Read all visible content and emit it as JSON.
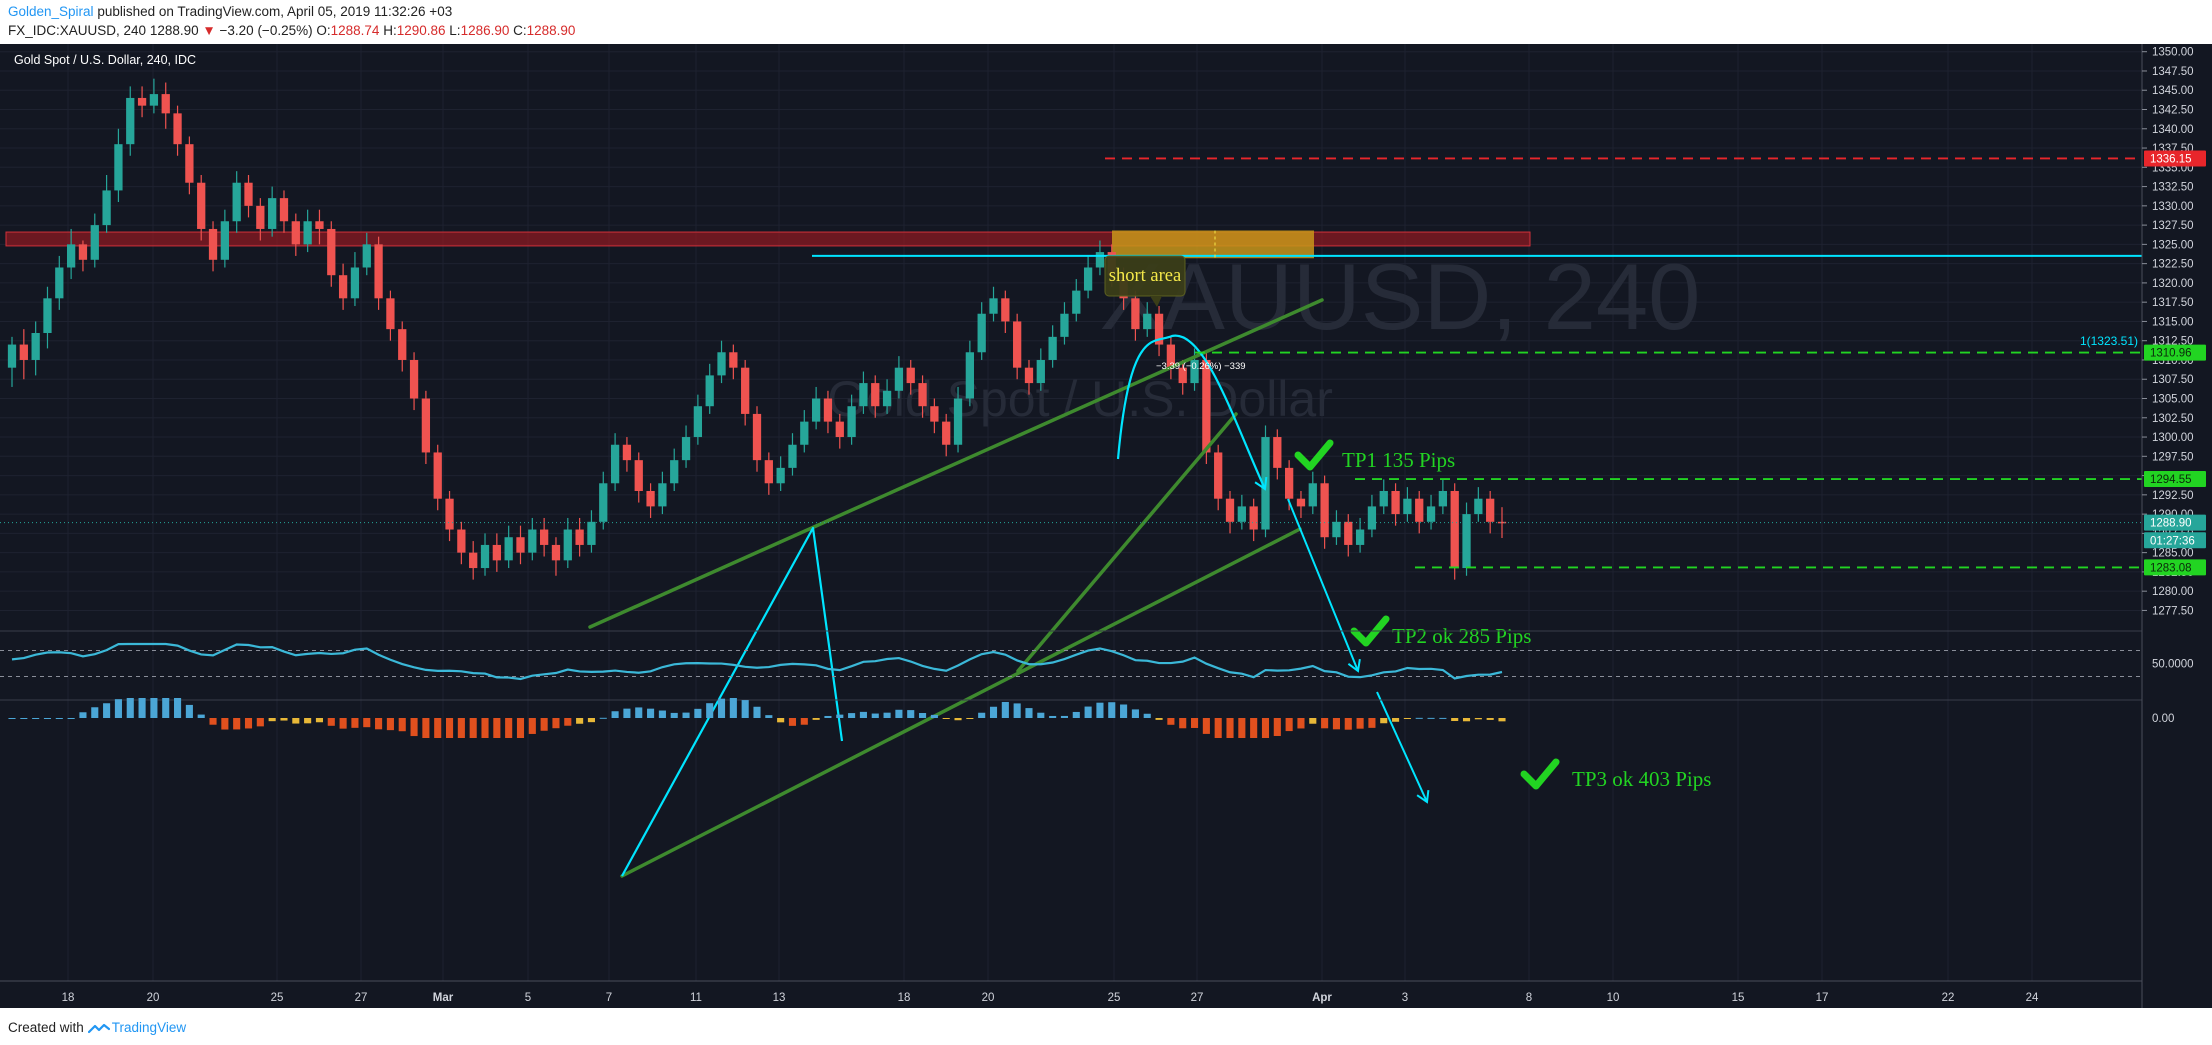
{
  "header": {
    "author": "Golden_Spiral",
    "published": "published on TradingView.com, April 05, 2019 11:32:26 +03",
    "symbol_info": "FX_IDC:XAUUSD, 240",
    "last": "1288.90",
    "change_arrow": "▼",
    "change": "−3.20 (−0.25%)",
    "o_label": "O:",
    "o": "1288.74",
    "h_label": "H:",
    "h": "1290.86",
    "l_label": "L:",
    "l": "1286.90",
    "c_label": "C:",
    "c": "1288.90"
  },
  "footer": {
    "prefix": "Created with",
    "brand": "TradingView"
  },
  "colors": {
    "background": "#131722",
    "up": "#26a69a",
    "down": "#ef5350",
    "cyan": "#00e5ff",
    "green_line": "#3e8a2e",
    "tp_green": "#22d422",
    "stop_red": "#e8262b"
  },
  "chart_data": {
    "type": "candlestick",
    "title": "Gold Spot / U.S. Dollar, 240, IDC",
    "watermark_symbol": "XAUUSD, 240",
    "watermark_name": "Gold Spot / U.S. Dollar",
    "ylim": [
      1276.0,
      1351.0
    ],
    "y_ticks": [
      "1277.50",
      "1280.00",
      "1282.50",
      "1285.00",
      "1287.50",
      "1290.00",
      "1292.50",
      "1295.00",
      "1297.50",
      "1300.00",
      "1302.50",
      "1305.00",
      "1307.50",
      "1310.00",
      "1312.50",
      "1315.00",
      "1317.50",
      "1320.00",
      "1322.50",
      "1325.00",
      "1327.50",
      "1330.00",
      "1332.50",
      "1335.00",
      "1337.50",
      "1340.00",
      "1342.50",
      "1345.00",
      "1347.50",
      "1350.00"
    ],
    "x_ticks": [
      "18",
      "20",
      "25",
      "27",
      "Mar",
      "5",
      "7",
      "11",
      "13",
      "18",
      "20",
      "25",
      "27",
      "Apr",
      "3",
      "8",
      "10",
      "15",
      "17",
      "22",
      "24"
    ],
    "price_labels": [
      {
        "text": "1336.15",
        "value": 1336.15,
        "color": "#e8262b"
      },
      {
        "text": "1310.96",
        "value": 1310.96,
        "color": "#22d422"
      },
      {
        "text": "1294.55",
        "value": 1294.55,
        "color": "#22d422"
      },
      {
        "text": "1288.90",
        "value": 1288.9,
        "color": "#26a69a"
      },
      {
        "text": "01:27:36",
        "value": 1286.6,
        "color": "#26a69a"
      },
      {
        "text": "1283.08",
        "value": 1283.08,
        "color": "#22d422"
      }
    ],
    "levels": [
      {
        "value": 1336.15,
        "color": "#e8262b"
      },
      {
        "value": 1310.96,
        "color": "#22d422",
        "label": "TP1 135 Pips"
      },
      {
        "value": 1294.55,
        "color": "#22d422",
        "label": "TP2 ok 285 Pips"
      },
      {
        "value": 1283.08,
        "color": "#22d422",
        "label": "TP3 ok 403  Pips"
      },
      {
        "value": 1323.51,
        "color": "#00e5ff",
        "label": "1(1323.51)"
      }
    ],
    "annotations": {
      "short_area": "short area",
      "measure": "−3.39 (−0.26%) −339",
      "fib_label": "1(1323.51)",
      "tp1": "TP1 135 Pips",
      "tp2": "TP2 ok 285 Pips",
      "tp3": "TP3 ok 403  Pips"
    },
    "rsi": {
      "level_label": "50.0000",
      "upper": 70,
      "lower": 30
    },
    "macd": {
      "zero_label": "0.00"
    },
    "candles": [
      [
        1309.0,
        1312.0,
        1306.5,
        1313.0
      ],
      [
        1312.0,
        1310.0,
        1307.5,
        1314.0
      ],
      [
        1310.0,
        1313.5,
        1308.0,
        1315.0
      ],
      [
        1313.5,
        1318.0,
        1311.5,
        1319.5
      ],
      [
        1318.0,
        1322.0,
        1316.5,
        1323.5
      ],
      [
        1322.0,
        1325.0,
        1320.5,
        1327.0
      ],
      [
        1325.0,
        1323.0,
        1321.5,
        1325.5
      ],
      [
        1323.0,
        1327.5,
        1322.0,
        1329.0
      ],
      [
        1327.5,
        1332.0,
        1326.5,
        1334.0
      ],
      [
        1332.0,
        1338.0,
        1330.5,
        1340.0
      ],
      [
        1338.0,
        1344.0,
        1336.5,
        1345.5
      ],
      [
        1344.0,
        1343.0,
        1341.5,
        1345.5
      ],
      [
        1343.0,
        1344.5,
        1342.0,
        1346.5
      ],
      [
        1344.5,
        1342.0,
        1340.0,
        1346.0
      ],
      [
        1342.0,
        1338.0,
        1336.5,
        1343.0
      ],
      [
        1338.0,
        1333.0,
        1331.5,
        1339.0
      ],
      [
        1333.0,
        1327.0,
        1325.5,
        1334.0
      ],
      [
        1327.0,
        1323.0,
        1321.5,
        1328.0
      ],
      [
        1323.0,
        1328.0,
        1322.0,
        1329.5
      ],
      [
        1328.0,
        1333.0,
        1326.5,
        1334.5
      ],
      [
        1333.0,
        1330.0,
        1328.5,
        1334.0
      ],
      [
        1330.0,
        1327.0,
        1325.5,
        1331.0
      ],
      [
        1327.0,
        1331.0,
        1326.0,
        1332.5
      ],
      [
        1331.0,
        1328.0,
        1326.5,
        1332.0
      ],
      [
        1328.0,
        1325.0,
        1323.5,
        1329.0
      ],
      [
        1325.0,
        1328.0,
        1324.0,
        1329.5
      ],
      [
        1328.0,
        1327.0,
        1325.0,
        1329.5
      ],
      [
        1327.0,
        1321.0,
        1319.5,
        1328.0
      ],
      [
        1321.0,
        1318.0,
        1316.5,
        1322.5
      ],
      [
        1318.0,
        1322.0,
        1317.0,
        1324.0
      ],
      [
        1322.0,
        1325.0,
        1321.0,
        1326.5
      ],
      [
        1325.0,
        1318.0,
        1316.5,
        1326.0
      ],
      [
        1318.0,
        1314.0,
        1312.5,
        1319.0
      ],
      [
        1314.0,
        1310.0,
        1308.5,
        1315.0
      ],
      [
        1310.0,
        1305.0,
        1303.5,
        1311.0
      ],
      [
        1305.0,
        1298.0,
        1296.5,
        1306.0
      ],
      [
        1298.0,
        1292.0,
        1290.5,
        1299.0
      ],
      [
        1292.0,
        1288.0,
        1286.5,
        1293.0
      ],
      [
        1288.0,
        1285.0,
        1283.5,
        1289.0
      ],
      [
        1285.0,
        1283.0,
        1281.5,
        1286.5
      ],
      [
        1283.0,
        1286.0,
        1282.0,
        1287.5
      ],
      [
        1286.0,
        1284.0,
        1282.5,
        1287.5
      ],
      [
        1284.0,
        1287.0,
        1283.0,
        1288.5
      ],
      [
        1287.0,
        1285.0,
        1283.5,
        1288.5
      ],
      [
        1285.0,
        1288.0,
        1284.0,
        1289.5
      ],
      [
        1288.0,
        1286.0,
        1284.5,
        1289.5
      ],
      [
        1286.0,
        1284.0,
        1282.0,
        1287.0
      ],
      [
        1284.0,
        1288.0,
        1283.0,
        1289.5
      ],
      [
        1288.0,
        1286.0,
        1284.5,
        1289.5
      ],
      [
        1286.0,
        1289.0,
        1285.0,
        1290.5
      ],
      [
        1289.0,
        1294.0,
        1288.0,
        1295.5
      ],
      [
        1294.0,
        1299.0,
        1293.0,
        1300.5
      ],
      [
        1299.0,
        1297.0,
        1295.5,
        1300.0
      ],
      [
        1297.0,
        1293.0,
        1291.5,
        1298.0
      ],
      [
        1293.0,
        1291.0,
        1289.5,
        1294.0
      ],
      [
        1291.0,
        1294.0,
        1290.0,
        1295.5
      ],
      [
        1294.0,
        1297.0,
        1293.0,
        1298.5
      ],
      [
        1297.0,
        1300.0,
        1296.0,
        1301.5
      ],
      [
        1300.0,
        1304.0,
        1299.0,
        1305.5
      ],
      [
        1304.0,
        1308.0,
        1303.0,
        1309.5
      ],
      [
        1308.0,
        1311.0,
        1307.0,
        1312.5
      ],
      [
        1311.0,
        1309.0,
        1307.5,
        1312.0
      ],
      [
        1309.0,
        1303.0,
        1301.5,
        1310.0
      ],
      [
        1303.0,
        1297.0,
        1295.5,
        1304.0
      ],
      [
        1297.0,
        1294.0,
        1292.5,
        1298.0
      ],
      [
        1294.0,
        1296.0,
        1293.0,
        1297.5
      ],
      [
        1296.0,
        1299.0,
        1295.0,
        1300.5
      ],
      [
        1299.0,
        1302.0,
        1298.0,
        1303.5
      ],
      [
        1302.0,
        1305.0,
        1301.0,
        1306.5
      ],
      [
        1305.0,
        1302.0,
        1300.5,
        1306.0
      ],
      [
        1302.0,
        1300.0,
        1298.5,
        1303.0
      ],
      [
        1300.0,
        1304.0,
        1299.0,
        1305.5
      ],
      [
        1304.0,
        1307.0,
        1303.0,
        1308.5
      ],
      [
        1307.0,
        1304.0,
        1302.5,
        1308.0
      ],
      [
        1304.0,
        1306.0,
        1303.0,
        1307.5
      ],
      [
        1306.0,
        1309.0,
        1305.0,
        1310.5
      ],
      [
        1309.0,
        1307.0,
        1305.5,
        1310.0
      ],
      [
        1307.0,
        1304.0,
        1302.5,
        1308.0
      ],
      [
        1304.0,
        1302.0,
        1300.5,
        1305.0
      ],
      [
        1302.0,
        1299.0,
        1297.5,
        1303.0
      ],
      [
        1299.0,
        1305.0,
        1298.0,
        1306.5
      ],
      [
        1305.0,
        1311.0,
        1304.0,
        1312.5
      ],
      [
        1311.0,
        1316.0,
        1310.0,
        1317.5
      ],
      [
        1316.0,
        1318.0,
        1315.0,
        1319.5
      ],
      [
        1318.0,
        1315.0,
        1313.5,
        1319.0
      ],
      [
        1315.0,
        1309.0,
        1307.5,
        1316.0
      ],
      [
        1309.0,
        1307.0,
        1305.5,
        1310.0
      ],
      [
        1307.0,
        1310.0,
        1306.0,
        1311.5
      ],
      [
        1310.0,
        1313.0,
        1309.0,
        1314.5
      ],
      [
        1313.0,
        1316.0,
        1312.0,
        1317.5
      ],
      [
        1316.0,
        1319.0,
        1315.0,
        1320.5
      ],
      [
        1319.0,
        1322.0,
        1318.0,
        1323.5
      ],
      [
        1322.0,
        1324.0,
        1321.0,
        1325.5
      ],
      [
        1324.0,
        1321.0,
        1319.5,
        1325.0
      ],
      [
        1321.0,
        1318.0,
        1316.5,
        1322.0
      ],
      [
        1318.0,
        1314.0,
        1312.5,
        1319.0
      ],
      [
        1314.0,
        1316.0,
        1313.0,
        1317.5
      ],
      [
        1316.0,
        1312.0,
        1310.5,
        1317.0
      ],
      [
        1312.0,
        1309.0,
        1307.5,
        1313.0
      ],
      [
        1309.0,
        1307.0,
        1305.5,
        1310.0
      ],
      [
        1307.0,
        1310.0,
        1306.0,
        1311.5
      ],
      [
        1310.0,
        1298.0,
        1296.5,
        1311.0
      ],
      [
        1298.0,
        1292.0,
        1290.5,
        1299.0
      ],
      [
        1292.0,
        1289.0,
        1287.5,
        1293.0
      ],
      [
        1289.0,
        1291.0,
        1288.0,
        1292.5
      ],
      [
        1291.0,
        1288.0,
        1286.5,
        1292.0
      ],
      [
        1288.0,
        1300.0,
        1287.0,
        1301.5
      ],
      [
        1300.0,
        1296.0,
        1294.5,
        1301.0
      ],
      [
        1296.0,
        1292.0,
        1290.5,
        1297.0
      ],
      [
        1292.0,
        1291.0,
        1289.5,
        1293.0
      ],
      [
        1291.0,
        1294.0,
        1290.0,
        1295.5
      ],
      [
        1294.0,
        1287.0,
        1285.5,
        1295.0
      ],
      [
        1287.0,
        1289.0,
        1286.0,
        1290.5
      ],
      [
        1289.0,
        1286.0,
        1284.5,
        1290.0
      ],
      [
        1286.0,
        1288.0,
        1285.0,
        1289.5
      ],
      [
        1288.0,
        1291.0,
        1287.0,
        1292.5
      ],
      [
        1291.0,
        1293.0,
        1290.0,
        1294.5
      ],
      [
        1293.0,
        1290.0,
        1288.5,
        1294.0
      ],
      [
        1290.0,
        1292.0,
        1289.0,
        1293.5
      ],
      [
        1292.0,
        1289.0,
        1287.5,
        1293.0
      ],
      [
        1289.0,
        1291.0,
        1288.0,
        1292.5
      ],
      [
        1291.0,
        1293.0,
        1290.0,
        1294.5
      ],
      [
        1293.0,
        1283.0,
        1281.5,
        1294.0
      ],
      [
        1283.0,
        1290.0,
        1282.0,
        1291.5
      ],
      [
        1290.0,
        1292.0,
        1289.0,
        1293.5
      ],
      [
        1292.0,
        1289.0,
        1287.5,
        1293.0
      ],
      [
        1289.0,
        1288.9,
        1286.9,
        1290.9
      ]
    ]
  }
}
